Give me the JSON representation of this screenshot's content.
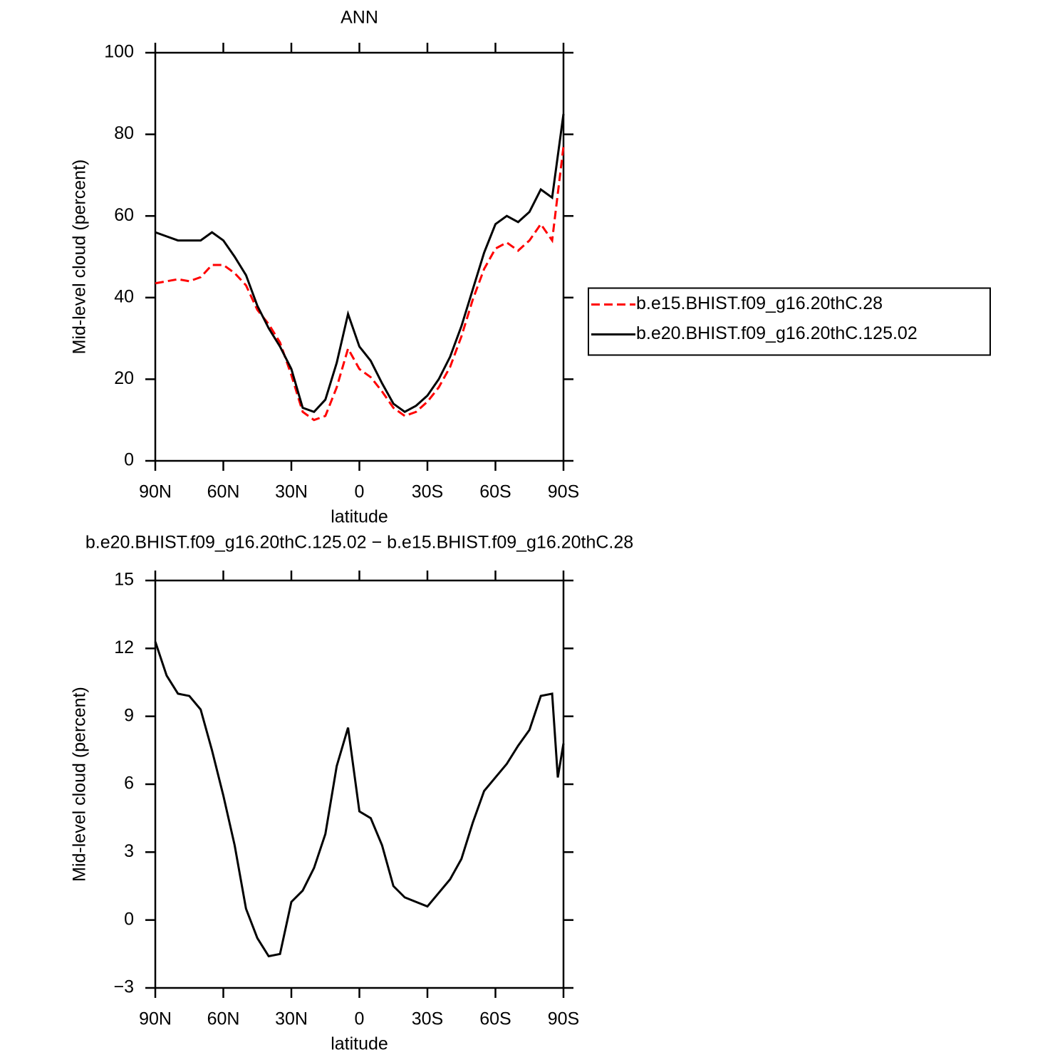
{
  "chart_data": [
    {
      "type": "line",
      "title": "ANN",
      "xlabel": "latitude",
      "ylabel": "Mid-level cloud (percent)",
      "x": [
        90,
        85,
        80,
        75,
        70,
        65,
        60,
        55,
        50,
        45,
        40,
        35,
        30,
        25,
        20,
        15,
        10,
        5,
        0,
        -5,
        -10,
        -15,
        -20,
        -25,
        -30,
        -35,
        -40,
        -45,
        -50,
        -55,
        -60,
        -65,
        -70,
        -75,
        -80,
        -85,
        -90
      ],
      "series": [
        {
          "name": "b.e15.BHIST.f09_g16.20thC.28",
          "color": "#ff0000",
          "style": "dashed",
          "values": [
            43.5,
            44,
            44.5,
            44,
            45,
            48,
            48,
            46,
            43,
            37,
            33.5,
            29,
            21,
            12,
            10,
            11,
            18,
            27.5,
            22.5,
            20.5,
            17,
            13,
            11,
            12,
            14.5,
            18,
            23,
            30.5,
            39.5,
            47,
            52,
            53.5,
            51.5,
            54,
            58,
            54,
            77
          ]
        },
        {
          "name": "b.e20.BHIST.f09_g16.20thC.125.02",
          "color": "#000000",
          "style": "solid",
          "values": [
            56,
            55,
            54,
            54,
            54,
            56,
            54,
            50,
            45.5,
            38,
            32.5,
            28,
            22.5,
            13,
            12,
            15,
            24,
            36,
            28,
            24.5,
            19,
            14,
            12,
            13.5,
            16,
            20,
            25.5,
            33,
            42,
            51,
            58,
            60,
            58.5,
            61,
            66.5,
            64.5,
            85
          ]
        }
      ],
      "xlim": [
        90,
        -90
      ],
      "xticks": [
        {
          "value": 90,
          "label": "90N"
        },
        {
          "value": 60,
          "label": "60N"
        },
        {
          "value": 30,
          "label": "30N"
        },
        0,
        {
          "value": -30,
          "label": "30S"
        },
        {
          "value": -60,
          "label": "60S"
        },
        {
          "value": -90,
          "label": "90S"
        }
      ],
      "ylim": [
        0,
        100
      ],
      "yticks": [
        0,
        20,
        40,
        60,
        80,
        100
      ],
      "legend": "right"
    },
    {
      "type": "line",
      "title": "b.e20.BHIST.f09_g16.20thC.125.02 − b.e15.BHIST.f09_g16.20thC.28",
      "xlabel": "latitude",
      "ylabel": "Mid-level cloud (percent)",
      "x": [
        90,
        85,
        80,
        75,
        70,
        65,
        60,
        55,
        50,
        45,
        40,
        35,
        30,
        25,
        20,
        15,
        10,
        5,
        0,
        -5,
        -10,
        -15,
        -20,
        -25,
        -30,
        -35,
        -40,
        -45,
        -50,
        -55,
        -60,
        -65,
        -70,
        -75,
        -80,
        -85,
        -87.5,
        -90
      ],
      "series": [
        {
          "color": "#000000",
          "style": "solid",
          "values": [
            12.3,
            10.8,
            10,
            9.9,
            9.3,
            7.5,
            5.5,
            3.3,
            0.5,
            -0.8,
            -1.6,
            -1.5,
            0.8,
            1.3,
            2.3,
            3.8,
            6.8,
            8.5,
            4.8,
            4.5,
            3.3,
            1.5,
            1,
            0.8,
            0.6,
            1.2,
            1.8,
            2.7,
            4.3,
            5.7,
            6.3,
            6.9,
            7.7,
            8.4,
            9.9,
            10,
            6.3,
            7.8
          ]
        }
      ],
      "xlim": [
        90,
        -90
      ],
      "xticks": [
        {
          "value": 90,
          "label": "90N"
        },
        {
          "value": 60,
          "label": "60N"
        },
        {
          "value": 30,
          "label": "30N"
        },
        0,
        {
          "value": -30,
          "label": "30S"
        },
        {
          "value": -60,
          "label": "60S"
        },
        {
          "value": -90,
          "label": "90S"
        }
      ],
      "ylim": [
        -3,
        15
      ],
      "yticks": [
        {
          "value": -3,
          "label": "−3"
        },
        0,
        3,
        6,
        9,
        12,
        15
      ]
    }
  ]
}
